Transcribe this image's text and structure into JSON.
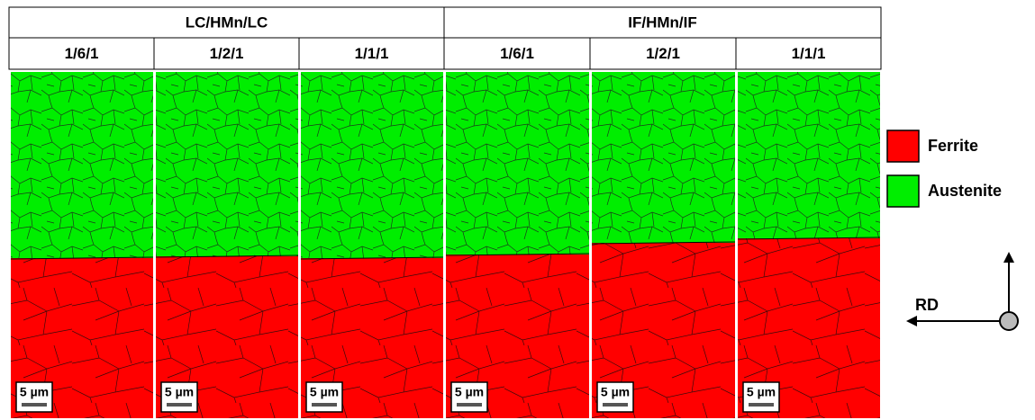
{
  "header": {
    "groups": [
      {
        "title": "LC/HMn/LC",
        "columns": [
          "1/6/1",
          "1/2/1",
          "1/1/1"
        ]
      },
      {
        "title": "IF/HMn/IF",
        "columns": [
          "1/6/1",
          "1/2/1",
          "1/1/1"
        ]
      }
    ]
  },
  "panels": [
    {
      "scale_bar": "5 µm"
    },
    {
      "scale_bar": "5 µm"
    },
    {
      "scale_bar": "5 µm"
    },
    {
      "scale_bar": "5 µm"
    },
    {
      "scale_bar": "5 µm"
    },
    {
      "scale_bar": "5 µm"
    }
  ],
  "legend": [
    {
      "label": "Ferrite"
    },
    {
      "label": "Austenite"
    }
  ],
  "direction_label": "RD"
}
